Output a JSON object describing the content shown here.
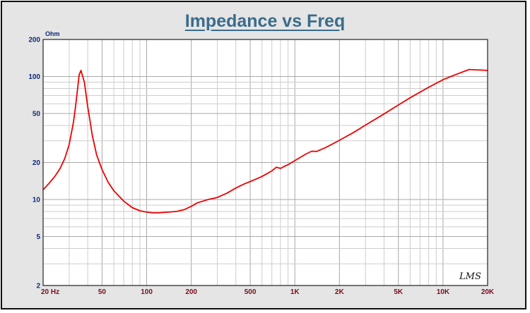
{
  "chart_data": {
    "type": "line",
    "title": "Impedance vs Freq",
    "ylabel": "Ohm",
    "xlabel": "",
    "x_scale": "log",
    "y_scale": "log",
    "xlim": [
      20,
      20000
    ],
    "ylim": [
      2,
      200
    ],
    "x_tick_labels": [
      {
        "value": 20,
        "label": "20  Hz"
      },
      {
        "value": 50,
        "label": "50"
      },
      {
        "value": 100,
        "label": "100"
      },
      {
        "value": 200,
        "label": "200"
      },
      {
        "value": 500,
        "label": "500"
      },
      {
        "value": 1000,
        "label": "1K"
      },
      {
        "value": 2000,
        "label": "2K"
      },
      {
        "value": 5000,
        "label": "5K"
      },
      {
        "value": 10000,
        "label": "10K"
      },
      {
        "value": 20000,
        "label": "20K"
      }
    ],
    "y_tick_labels": [
      {
        "value": 200,
        "label": "200"
      },
      {
        "value": 100,
        "label": "100"
      },
      {
        "value": 50,
        "label": "50"
      },
      {
        "value": 20,
        "label": "20"
      },
      {
        "value": 10,
        "label": "10"
      },
      {
        "value": 5,
        "label": "5"
      },
      {
        "value": 2,
        "label": "2"
      }
    ],
    "grid": true,
    "watermark": "LMS",
    "series": [
      {
        "color": "#ee0000",
        "x": [
          20,
          22,
          24,
          26,
          28,
          30,
          32,
          33,
          34,
          35,
          36,
          38,
          40,
          43,
          46,
          50,
          55,
          60,
          70,
          80,
          90,
          100,
          110,
          120,
          140,
          160,
          180,
          200,
          220,
          240,
          260,
          280,
          300,
          350,
          400,
          450,
          500,
          550,
          600,
          700,
          750,
          800,
          850,
          900,
          1000,
          1100,
          1200,
          1300,
          1400,
          1600,
          1800,
          2000,
          2500,
          3000,
          4000,
          5000,
          6000,
          8000,
          10000,
          12000,
          15000,
          20000
        ],
        "y": [
          12,
          13.6,
          15.4,
          17.8,
          21.5,
          28,
          42,
          55,
          75,
          103,
          112,
          90,
          57,
          33,
          23,
          17.5,
          13.8,
          11.8,
          9.7,
          8.6,
          8.1,
          7.9,
          7.8,
          7.8,
          7.9,
          8.0,
          8.3,
          8.8,
          9.4,
          9.7,
          10.0,
          10.2,
          10.4,
          11.3,
          12.4,
          13.3,
          14.0,
          14.7,
          15.4,
          17.1,
          18.3,
          17.9,
          18.6,
          19.2,
          20.7,
          22.2,
          23.6,
          24.7,
          24.6,
          26.3,
          28.3,
          30.3,
          35.2,
          40.3,
          49.6,
          58.7,
          67.2,
          81.7,
          94.1,
          103,
          114,
          112
        ]
      }
    ]
  }
}
